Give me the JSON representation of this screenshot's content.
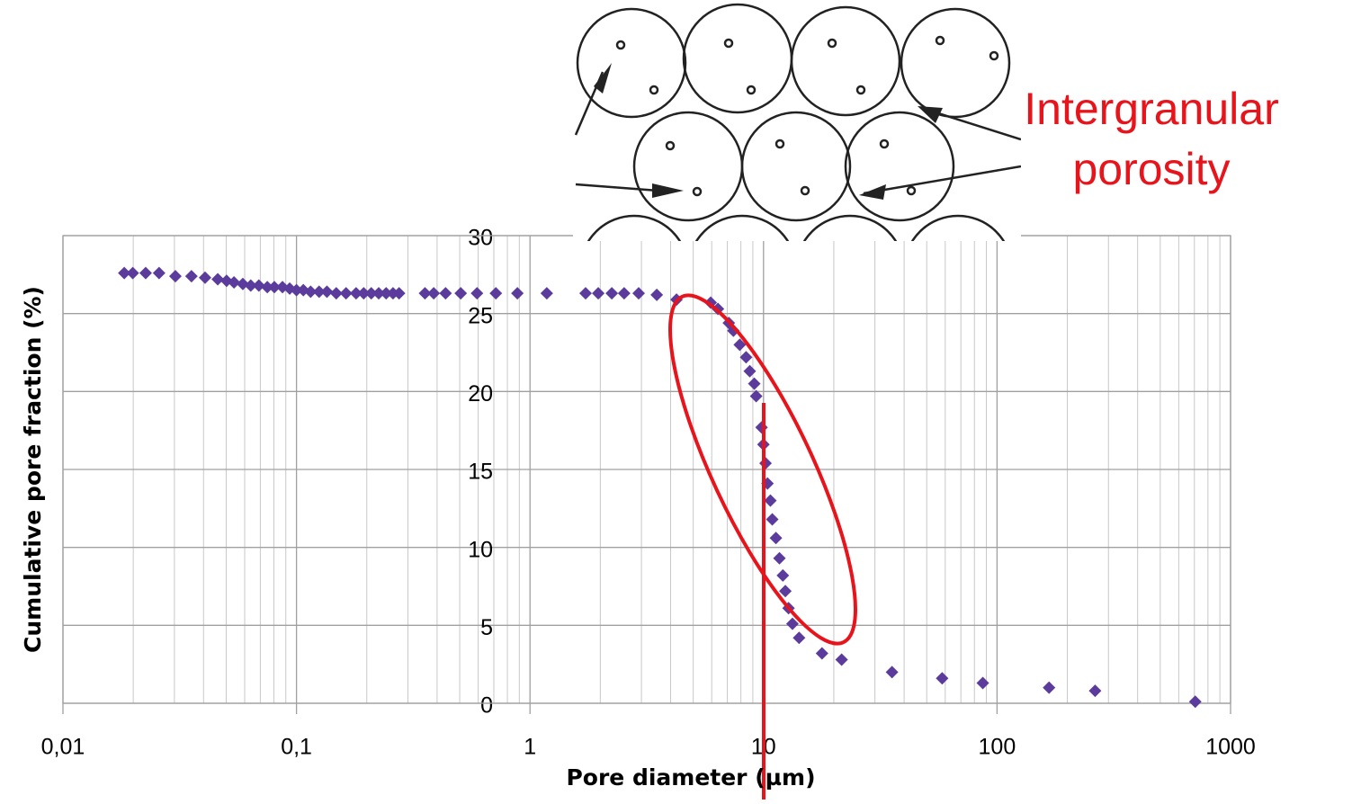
{
  "chart_data": {
    "type": "scatter",
    "x_label": "Pore diameter (µm)",
    "y_label": "Cumulative pore fraction (%)",
    "annotation": [
      "Intergranular",
      "porosity"
    ],
    "log_x": true,
    "grid": true,
    "xlim": [
      0.01,
      1000
    ],
    "xticks": [
      {
        "value": 0.01,
        "label": "0,01"
      },
      {
        "value": 0.1,
        "label": "0,1"
      },
      1,
      10,
      100,
      1000
    ],
    "ylim": [
      0,
      30
    ],
    "yticks": [
      0,
      5,
      10,
      15,
      20,
      25,
      30
    ],
    "series": [
      {
        "color": "#5b3c9c",
        "x": [
          0.0183,
          0.0199,
          0.0226,
          0.0258,
          0.0303,
          0.0355,
          0.0406,
          0.046,
          0.0502,
          0.054,
          0.0589,
          0.0637,
          0.069,
          0.075,
          0.0804,
          0.0871,
          0.0935,
          0.1,
          0.107,
          0.115,
          0.125,
          0.135,
          0.148,
          0.163,
          0.18,
          0.194,
          0.209,
          0.225,
          0.242,
          0.259,
          0.275,
          0.355,
          0.387,
          0.435,
          0.505,
          0.593,
          0.714,
          0.883,
          1.18,
          1.73,
          1.96,
          2.24,
          2.53,
          2.92,
          3.49,
          4.24,
          5.94,
          6.38,
          7.1,
          7.43,
          7.91,
          8.42,
          8.73,
          9.13,
          9.3,
          9.81,
          9.99,
          10.2,
          10.4,
          10.7,
          10.9,
          11.3,
          11.7,
          12.1,
          12.4,
          12.8,
          13.3,
          14.2,
          17.8,
          21.6,
          35.5,
          58.2,
          86.9,
          167,
          263,
          706
        ],
        "values": [
          27.6,
          27.6,
          27.6,
          27.6,
          27.4,
          27.4,
          27.3,
          27.2,
          27.1,
          27.0,
          26.9,
          26.8,
          26.8,
          26.7,
          26.7,
          26.7,
          26.6,
          26.5,
          26.5,
          26.4,
          26.4,
          26.4,
          26.3,
          26.3,
          26.3,
          26.3,
          26.3,
          26.3,
          26.3,
          26.3,
          26.3,
          26.3,
          26.3,
          26.3,
          26.3,
          26.3,
          26.3,
          26.3,
          26.3,
          26.3,
          26.3,
          26.3,
          26.3,
          26.3,
          26.2,
          25.9,
          25.7,
          25.3,
          24.4,
          23.9,
          23.0,
          22.2,
          21.3,
          20.5,
          19.7,
          17.7,
          16.6,
          15.4,
          14.1,
          13.0,
          11.8,
          10.6,
          9.3,
          8.2,
          7.2,
          6.1,
          5.1,
          4.2,
          3.2,
          2.8,
          2.0,
          1.6,
          1.3,
          1.0,
          0.8,
          0.1
        ]
      }
    ]
  }
}
